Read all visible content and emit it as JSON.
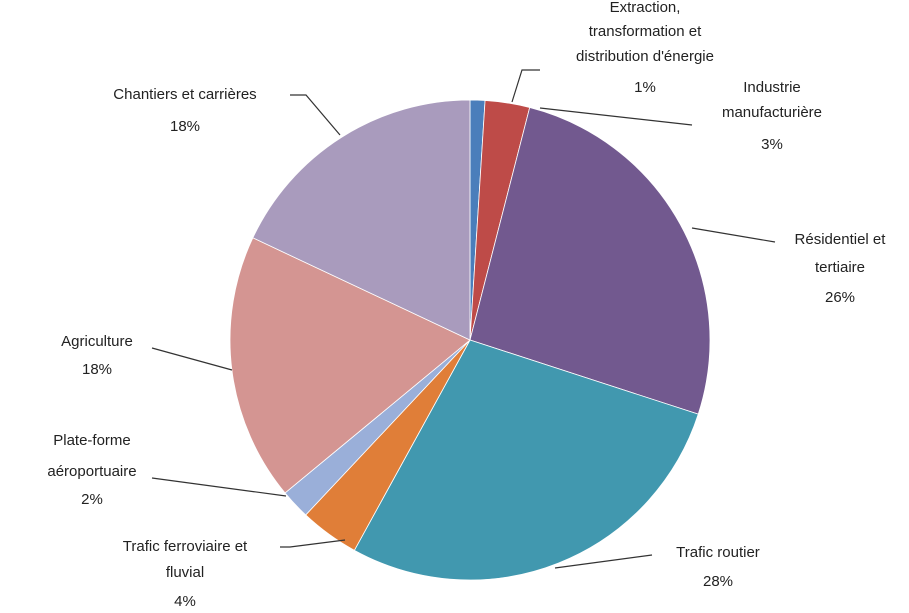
{
  "chart_data": {
    "type": "pie",
    "categories": [
      "Extraction, transformation et distribution d'énergie",
      "Industrie manufacturière",
      "Résidentiel et tertiaire",
      "Trafic routier",
      "Trafic ferroviaire et fluvial",
      "Plate-forme aéroportuaire",
      "Agriculture",
      "Chantiers et carrières"
    ],
    "values": [
      1,
      3,
      26,
      28,
      4,
      2,
      18,
      18
    ],
    "value_labels": [
      "1%",
      "3%",
      "26%",
      "28%",
      "4%",
      "2%",
      "18%",
      "18%"
    ],
    "colors": [
      "#4a7ebb",
      "#be4b48",
      "#72598f",
      "#4198af",
      "#e07e38",
      "#9aafd9",
      "#d49592",
      "#a99bbd"
    ]
  }
}
